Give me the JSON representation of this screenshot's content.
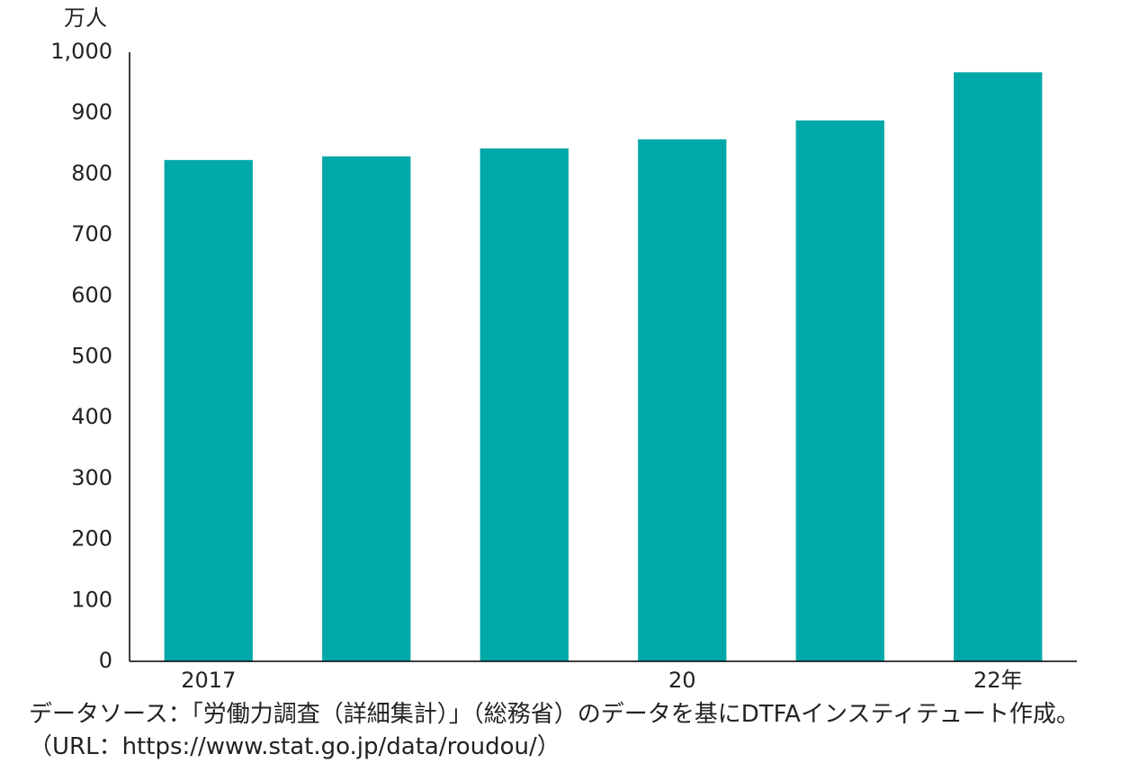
{
  "chart_data": {
    "type": "bar",
    "y_unit": "万人",
    "categories": [
      "2017",
      null,
      null,
      "20",
      null,
      "22年"
    ],
    "values": [
      823,
      829,
      842,
      857,
      888,
      967
    ],
    "color": "#00a9a8",
    "ylim": [
      0,
      1000
    ],
    "yticks": [
      0,
      100,
      200,
      300,
      400,
      500,
      600,
      700,
      800,
      900,
      {
        "value": 1000,
        "label": "1,000"
      }
    ],
    "grid": false,
    "source": "データソース：「労働力調査（詳細集計）」（総務省）のデータを基にDTFAインスティテュート作成。（URL：https://www.stat.go.jp/data/roudou/）"
  }
}
